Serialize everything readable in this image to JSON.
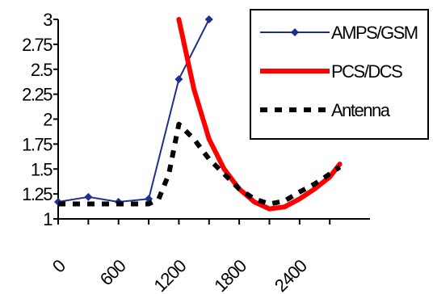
{
  "chart_data": {
    "type": "line",
    "xlabel": "",
    "ylabel": "",
    "xlim": [
      0,
      3100
    ],
    "ylim": [
      1,
      3
    ],
    "x_tick_labels": [
      "0",
      "600",
      "1200",
      "1800",
      "2400"
    ],
    "x_tick_values": [
      0,
      600,
      1200,
      1800,
      2400
    ],
    "y_tick_labels": [
      "1",
      "1.25",
      "1.5",
      "1.75",
      "2",
      "2.25",
      "2.5",
      "2.75",
      "3"
    ],
    "y_tick_values": [
      1,
      1.25,
      1.5,
      1.75,
      2,
      2.25,
      2.5,
      2.75,
      3
    ],
    "grid": false,
    "legend_position": "top-right",
    "series": [
      {
        "name": "AMPS/GSM",
        "color": "#1f2f8f",
        "style": "solid-with-diamond-markers",
        "x": [
          0,
          300,
          600,
          900,
          1200,
          1500
        ],
        "y": [
          1.17,
          1.22,
          1.17,
          1.2,
          2.4,
          3.0
        ]
      },
      {
        "name": "PCS/DCS",
        "color": "#ff0000",
        "style": "thick-solid",
        "x": [
          1200,
          1350,
          1500,
          1650,
          1800,
          1950,
          2100,
          2250,
          2400,
          2550,
          2700,
          2800
        ],
        "y": [
          3.0,
          2.3,
          1.8,
          1.5,
          1.3,
          1.17,
          1.1,
          1.12,
          1.2,
          1.3,
          1.42,
          1.55
        ]
      },
      {
        "name": "Antenna",
        "color": "#000000",
        "style": "thick-dashed",
        "x": [
          0,
          300,
          600,
          900,
          1000,
          1100,
          1200,
          1350,
          1500,
          1650,
          1800,
          1950,
          2100,
          2250,
          2400,
          2550,
          2700,
          2800
        ],
        "y": [
          1.15,
          1.15,
          1.15,
          1.15,
          1.2,
          1.45,
          1.95,
          1.8,
          1.6,
          1.45,
          1.3,
          1.2,
          1.15,
          1.18,
          1.27,
          1.35,
          1.45,
          1.52
        ]
      }
    ]
  }
}
